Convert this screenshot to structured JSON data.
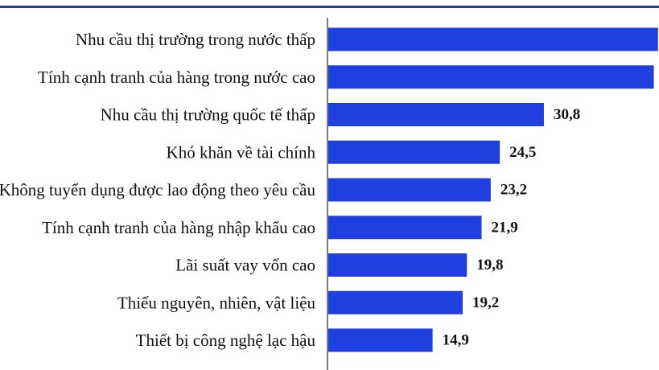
{
  "chart_data": {
    "type": "bar",
    "orientation": "horizontal",
    "title": "",
    "xlabel": "",
    "ylabel": "",
    "xlim": [
      0,
      50
    ],
    "grid": false,
    "legend": "none",
    "bar_color": "#1f3fe0",
    "categories": [
      "Nhu cầu thị trường trong nước thấp",
      "Tính cạnh tranh của hàng trong nước cao",
      "Nhu cầu thị trường quốc tế thấp",
      "Khó khăn về tài chính",
      "Không tuyển dụng được lao động theo yêu cầu",
      "Tính cạnh tranh của hàng nhập khẩu cao",
      "Lãi suất vay vốn cao",
      "Thiếu nguyên, nhiên, vật liệu",
      "Thiết bị công nghệ lạc hậu"
    ],
    "values": [
      47.1,
      46.5,
      30.8,
      24.5,
      23.2,
      21.9,
      19.8,
      19.2,
      14.9
    ],
    "value_labels": [
      "",
      "",
      "30,8",
      "24,5",
      "23,2",
      "21,9",
      "19,8",
      "19,2",
      "14,9"
    ]
  }
}
